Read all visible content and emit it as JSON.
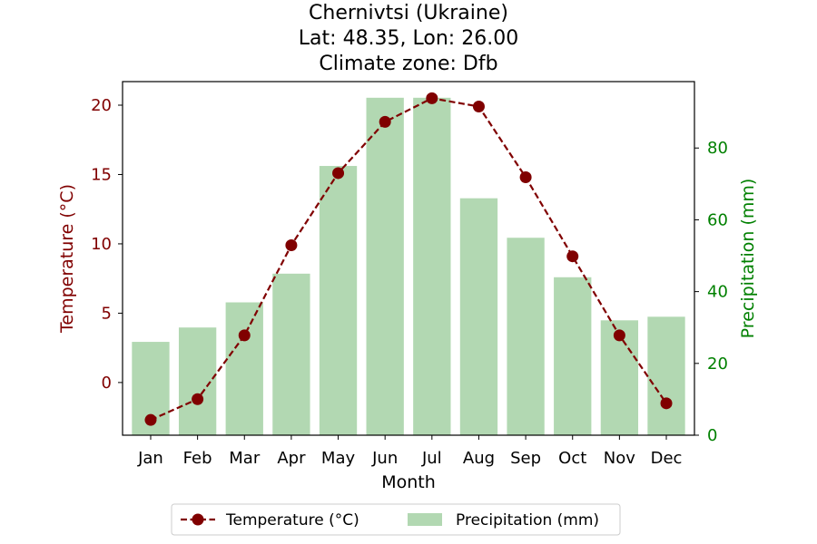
{
  "chart_data": {
    "type": "bar+line",
    "title_lines": [
      "Chernivtsi (Ukraine)",
      "Lat: 48.35, Lon: 26.00",
      "Climate zone: Dfb"
    ],
    "xlabel": "Month",
    "ylabel_left": "Temperature (°C)",
    "ylabel_right": "Precipitation (mm)",
    "categories": [
      "Jan",
      "Feb",
      "Mar",
      "Apr",
      "May",
      "Jun",
      "Jul",
      "Aug",
      "Sep",
      "Oct",
      "Nov",
      "Dec"
    ],
    "temperature": {
      "name": "Temperature (°C)",
      "values": [
        -2.7,
        -1.2,
        3.4,
        9.9,
        15.1,
        18.8,
        20.5,
        19.9,
        14.8,
        9.1,
        3.4,
        -1.5
      ],
      "color": "#800000",
      "ylim": [
        -3.8,
        21.7
      ],
      "ticks": [
        0,
        5,
        10,
        15,
        20
      ]
    },
    "precipitation": {
      "name": "Precipitation (mm)",
      "values": [
        26,
        30,
        37,
        45,
        75,
        94,
        94,
        66,
        55,
        44,
        32,
        33
      ],
      "color": "#008000",
      "bar_color": "#b2d8b2",
      "ylim": [
        0,
        98.5
      ],
      "ticks": [
        0,
        20,
        40,
        60,
        80
      ]
    },
    "legend_position": "bottom-center"
  }
}
